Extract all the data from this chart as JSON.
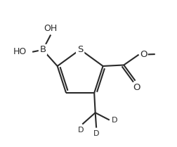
{
  "background": "#ffffff",
  "line_color": "#2a2a2a",
  "line_width": 1.5,
  "font_size": 9.5,
  "fig_width": 2.52,
  "fig_height": 2.09,
  "dpi": 100,
  "xlim": [
    0,
    8
  ],
  "ylim": [
    0,
    7
  ]
}
